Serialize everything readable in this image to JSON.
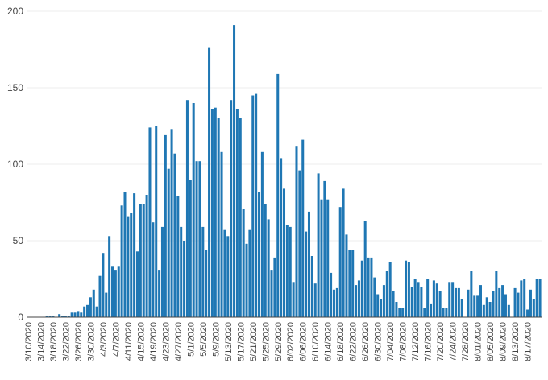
{
  "chart_data": {
    "type": "bar",
    "x_start": "3/10/2020",
    "x_tick_labels": [
      "3/10/2020",
      "3/14/2020",
      "3/18/2020",
      "3/22/2020",
      "3/26/2020",
      "3/30/2020",
      "4/3/2020",
      "4/7/2020",
      "4/11/2020",
      "4/15/2020",
      "4/19/2020",
      "4/23/2020",
      "4/27/2020",
      "5/1/2020",
      "5/5/2020",
      "5/9/2020",
      "5/13/2020",
      "5/17/2020",
      "5/21/2020",
      "5/25/2020",
      "5/29/2020",
      "6/02/2020",
      "6/06/2020",
      "6/10/2020",
      "6/14/2020",
      "6/18/2020",
      "6/22/2020",
      "6/26/2020",
      "6/30/2020",
      "7/04/2020",
      "7/08/2020",
      "7/12/2020",
      "7/16/2020",
      "7/20/2020",
      "7/24/2020",
      "7/28/2020",
      "8/01/2020",
      "8/05/2020",
      "8/09/2020",
      "8/13/2020",
      "8/17/2020"
    ],
    "y_tick_labels": [
      "0",
      "50",
      "100",
      "150",
      "200"
    ],
    "ylim": [
      0,
      200
    ],
    "values": [
      0,
      0,
      0,
      0,
      0,
      0,
      1,
      1,
      1,
      0,
      2,
      1,
      1,
      1,
      3,
      3,
      4,
      3,
      7,
      8,
      13,
      18,
      7,
      27,
      42,
      16,
      53,
      33,
      31,
      33,
      73,
      82,
      66,
      68,
      81,
      43,
      74,
      74,
      80,
      124,
      62,
      125,
      31,
      59,
      119,
      97,
      123,
      107,
      79,
      59,
      50,
      142,
      90,
      140,
      102,
      102,
      59,
      44,
      176,
      136,
      137,
      130,
      108,
      57,
      53,
      142,
      191,
      136,
      130,
      71,
      48,
      57,
      145,
      146,
      82,
      108,
      74,
      64,
      31,
      39,
      159,
      104,
      84,
      60,
      59,
      23,
      112,
      96,
      116,
      56,
      69,
      40,
      22,
      94,
      77,
      89,
      77,
      29,
      18,
      19,
      72,
      84,
      54,
      44,
      44,
      21,
      24,
      37,
      63,
      39,
      39,
      26,
      15,
      12,
      21,
      30,
      36,
      17,
      10,
      6,
      6,
      37,
      36,
      20,
      25,
      23,
      20,
      6,
      25,
      9,
      24,
      22,
      17,
      6,
      6,
      23,
      23,
      19,
      19,
      12,
      0,
      18,
      30,
      14,
      14,
      21,
      8,
      13,
      10,
      17,
      30,
      19,
      21,
      15,
      8,
      0,
      19,
      16,
      24,
      25,
      5,
      18,
      12,
      25,
      25
    ]
  }
}
